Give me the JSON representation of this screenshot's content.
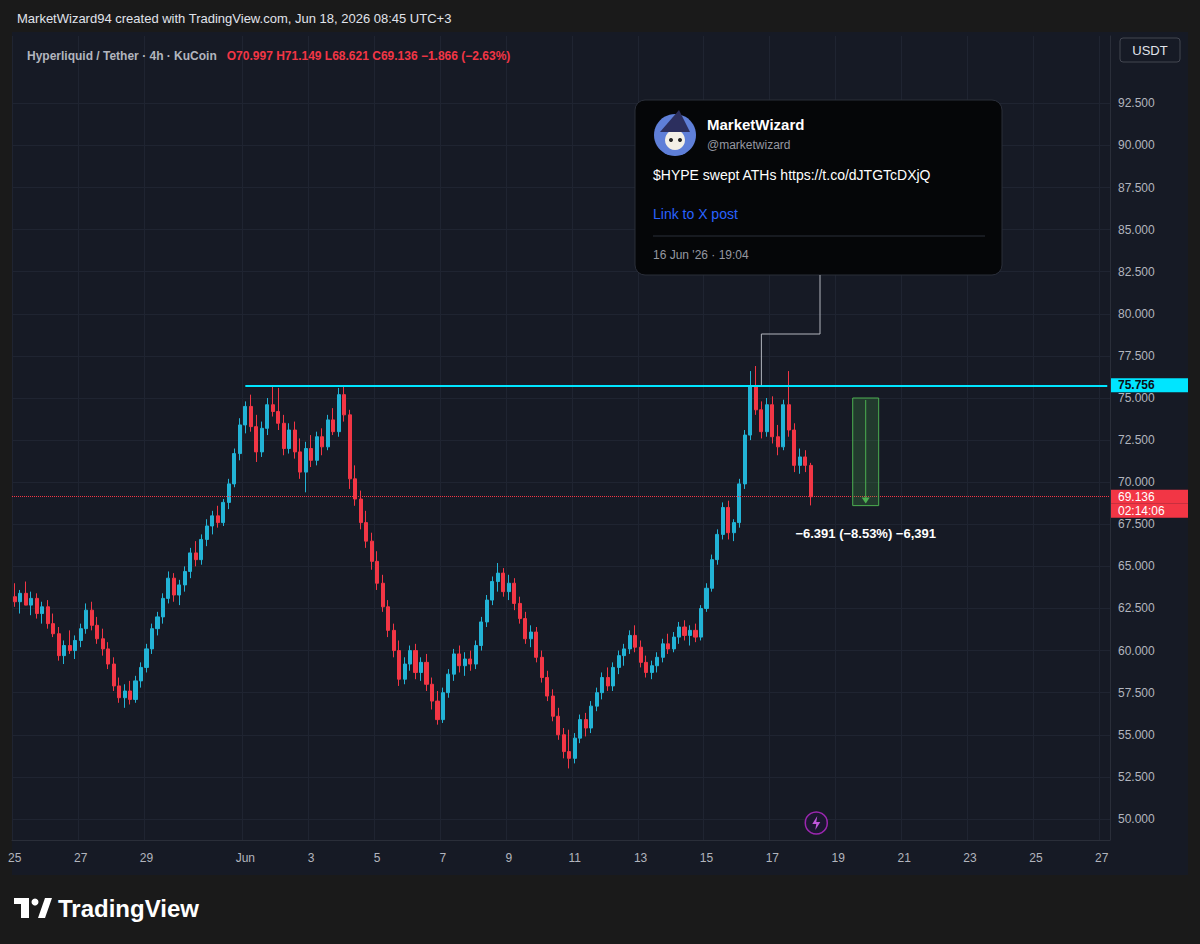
{
  "chart_data": {
    "type": "candlestick",
    "header": "MarketWizard94 created with TradingView.com, Jun 18, 2026 08:45 UTC+3",
    "title": "Hyperliquid / Tether · 4h · KuCoin",
    "subtitle": "O70.997 H71.149 L68.621 C69.136 −1.866 (−2.63%)",
    "currency": "USDT",
    "watermark": "TradingView",
    "grid": true,
    "categories": [
      "25",
      null,
      null,
      null,
      null,
      null,
      null,
      null,
      null,
      null,
      null,
      null,
      "27",
      null,
      null,
      null,
      null,
      null,
      null,
      null,
      null,
      null,
      null,
      null,
      "29",
      null,
      null,
      null,
      null,
      null,
      null,
      null,
      null,
      null,
      null,
      null,
      null,
      null,
      null,
      null,
      null,
      null,
      "Jun",
      null,
      null,
      null,
      null,
      null,
      null,
      null,
      null,
      null,
      null,
      null,
      "3",
      null,
      null,
      null,
      null,
      null,
      null,
      null,
      null,
      null,
      null,
      null,
      "5",
      null,
      null,
      null,
      null,
      null,
      null,
      null,
      null,
      null,
      null,
      null,
      "7",
      null,
      null,
      null,
      null,
      null,
      null,
      null,
      null,
      null,
      null,
      null,
      "9",
      null,
      null,
      null,
      null,
      null,
      null,
      null,
      null,
      null,
      null,
      null,
      "11",
      null,
      null,
      null,
      null,
      null,
      null,
      null,
      null,
      null,
      null,
      null,
      "13",
      null,
      null,
      null,
      null,
      null,
      null,
      null,
      null,
      null,
      null,
      null,
      "15",
      null,
      null,
      null,
      null,
      null,
      null,
      null,
      null,
      null,
      null,
      null,
      "17",
      null,
      null,
      null,
      null,
      null,
      null,
      null,
      null,
      null,
      null,
      null,
      "19",
      null,
      null,
      null,
      null,
      null,
      null,
      null,
      null,
      null,
      null,
      null,
      "21",
      null,
      null,
      null,
      null,
      null,
      null,
      null,
      null,
      null,
      null,
      null,
      "23",
      null,
      null,
      null,
      null,
      null,
      null,
      null,
      null,
      null,
      null,
      null,
      "25",
      null,
      null,
      null,
      null,
      null,
      null,
      null,
      null,
      null,
      null,
      null,
      "27",
      null
    ],
    "ohlc": [
      [
        63.2,
        64.0,
        62.6,
        62.9
      ],
      [
        62.9,
        63.6,
        62.2,
        63.4
      ],
      [
        63.4,
        64.1,
        62.8,
        62.7
      ],
      [
        62.7,
        63.5,
        62.1,
        63.1
      ],
      [
        63.1,
        63.4,
        61.9,
        62.2
      ],
      [
        62.2,
        62.9,
        61.6,
        62.6
      ],
      [
        62.6,
        63.0,
        61.3,
        61.6
      ],
      [
        61.6,
        62.2,
        60.8,
        61.0
      ],
      [
        61.0,
        61.4,
        59.4,
        59.7
      ],
      [
        59.7,
        60.6,
        59.2,
        60.3
      ],
      [
        60.3,
        61.2,
        59.8,
        60.0
      ],
      [
        60.0,
        60.9,
        59.5,
        60.6
      ],
      [
        60.6,
        61.6,
        60.2,
        61.3
      ],
      [
        61.3,
        62.8,
        61.0,
        62.4
      ],
      [
        62.4,
        62.9,
        61.2,
        61.5
      ],
      [
        61.5,
        62.0,
        60.4,
        60.7
      ],
      [
        60.7,
        61.3,
        59.7,
        60.1
      ],
      [
        60.1,
        60.5,
        58.9,
        59.2
      ],
      [
        59.2,
        59.6,
        57.6,
        57.9
      ],
      [
        57.9,
        58.4,
        56.9,
        57.2
      ],
      [
        57.2,
        58.0,
        56.6,
        57.6
      ],
      [
        57.6,
        58.2,
        56.8,
        57.1
      ],
      [
        57.1,
        58.5,
        56.9,
        58.2
      ],
      [
        58.2,
        59.3,
        57.8,
        59.0
      ],
      [
        59.0,
        60.4,
        58.7,
        60.1
      ],
      [
        60.1,
        61.6,
        59.8,
        61.3
      ],
      [
        61.3,
        62.3,
        60.9,
        62.0
      ],
      [
        62.0,
        63.4,
        61.6,
        63.1
      ],
      [
        63.1,
        64.7,
        62.8,
        64.3
      ],
      [
        64.3,
        64.6,
        62.9,
        63.3
      ],
      [
        63.3,
        64.2,
        62.7,
        63.9
      ],
      [
        63.9,
        65.0,
        63.5,
        64.7
      ],
      [
        64.7,
        66.1,
        64.3,
        65.8
      ],
      [
        65.8,
        66.5,
        65.0,
        65.4
      ],
      [
        65.4,
        66.9,
        65.1,
        66.6
      ],
      [
        66.6,
        67.8,
        66.2,
        67.4
      ],
      [
        67.4,
        68.3,
        66.9,
        68.0
      ],
      [
        68.0,
        68.6,
        67.3,
        67.6
      ],
      [
        67.6,
        69.0,
        67.4,
        68.8
      ],
      [
        68.8,
        70.2,
        68.4,
        69.9
      ],
      [
        69.9,
        72.0,
        69.7,
        71.7
      ],
      [
        71.7,
        73.8,
        71.3,
        73.4
      ],
      [
        73.4,
        74.8,
        72.9,
        74.5
      ],
      [
        74.5,
        75.2,
        73.0,
        73.3
      ],
      [
        73.3,
        74.0,
        71.2,
        71.8
      ],
      [
        71.8,
        73.6,
        71.5,
        73.2
      ],
      [
        73.2,
        75.0,
        72.8,
        74.6
      ],
      [
        74.6,
        75.7,
        73.9,
        74.2
      ],
      [
        74.2,
        75.6,
        73.1,
        73.5
      ],
      [
        73.5,
        74.0,
        71.6,
        72.0
      ],
      [
        72.0,
        73.5,
        71.7,
        73.1
      ],
      [
        73.1,
        73.6,
        71.4,
        71.8
      ],
      [
        71.8,
        72.6,
        70.2,
        70.6
      ],
      [
        70.6,
        72.4,
        69.4,
        72.0
      ],
      [
        72.0,
        72.8,
        70.9,
        71.3
      ],
      [
        71.3,
        73.0,
        71.0,
        72.7
      ],
      [
        72.7,
        73.2,
        71.6,
        72.1
      ],
      [
        72.1,
        74.0,
        71.9,
        73.7
      ],
      [
        73.7,
        74.4,
        72.8,
        73.0
      ],
      [
        73.0,
        75.6,
        72.7,
        75.2
      ],
      [
        75.2,
        75.7,
        73.6,
        74.0
      ],
      [
        74.0,
        74.3,
        69.6,
        70.2
      ],
      [
        70.2,
        71.0,
        68.6,
        69.0
      ],
      [
        69.0,
        69.5,
        67.2,
        67.6
      ],
      [
        67.6,
        68.3,
        66.1,
        66.5
      ],
      [
        66.5,
        67.0,
        64.8,
        65.3
      ],
      [
        65.3,
        65.9,
        63.6,
        64.0
      ],
      [
        64.0,
        64.5,
        62.3,
        62.6
      ],
      [
        62.6,
        63.0,
        60.8,
        61.2
      ],
      [
        61.2,
        61.6,
        59.6,
        60.0
      ],
      [
        60.0,
        60.6,
        57.9,
        58.3
      ],
      [
        58.3,
        59.6,
        58.0,
        59.2
      ],
      [
        59.2,
        60.3,
        58.8,
        60.0
      ],
      [
        60.0,
        60.4,
        58.3,
        58.7
      ],
      [
        58.7,
        59.6,
        58.2,
        59.3
      ],
      [
        59.3,
        59.8,
        57.6,
        58.0
      ],
      [
        58.0,
        58.4,
        56.5,
        57.0
      ],
      [
        57.0,
        57.6,
        55.6,
        55.9
      ],
      [
        55.9,
        57.8,
        55.7,
        57.5
      ],
      [
        57.5,
        58.9,
        57.2,
        58.6
      ],
      [
        58.6,
        60.1,
        58.2,
        59.8
      ],
      [
        59.8,
        60.3,
        58.7,
        59.1
      ],
      [
        59.1,
        59.9,
        58.5,
        59.5
      ],
      [
        59.5,
        60.0,
        58.8,
        59.2
      ],
      [
        59.2,
        60.6,
        58.9,
        60.3
      ],
      [
        60.3,
        62.0,
        60.0,
        61.7
      ],
      [
        61.7,
        63.3,
        61.4,
        63.0
      ],
      [
        63.0,
        64.4,
        62.7,
        64.1
      ],
      [
        64.1,
        65.2,
        63.5,
        64.6
      ],
      [
        64.6,
        64.9,
        63.2,
        63.5
      ],
      [
        63.5,
        64.5,
        63.0,
        64.0
      ],
      [
        64.0,
        64.3,
        62.4,
        62.8
      ],
      [
        62.8,
        63.2,
        61.6,
        61.9
      ],
      [
        61.9,
        62.3,
        60.4,
        60.7
      ],
      [
        60.7,
        61.5,
        60.2,
        61.1
      ],
      [
        61.1,
        61.4,
        59.3,
        59.6
      ],
      [
        59.6,
        60.0,
        58.1,
        58.4
      ],
      [
        58.4,
        58.8,
        57.0,
        57.3
      ],
      [
        57.3,
        57.7,
        55.8,
        56.1
      ],
      [
        56.1,
        56.6,
        54.7,
        55.0
      ],
      [
        55.0,
        55.4,
        53.6,
        54.0
      ],
      [
        54.0,
        55.3,
        53.0,
        53.6
      ],
      [
        53.6,
        55.1,
        53.3,
        54.8
      ],
      [
        54.8,
        56.2,
        54.5,
        55.9
      ],
      [
        55.9,
        56.3,
        54.9,
        55.4
      ],
      [
        55.4,
        57.0,
        55.1,
        56.7
      ],
      [
        56.7,
        57.8,
        56.4,
        57.5
      ],
      [
        57.5,
        58.7,
        57.1,
        58.4
      ],
      [
        58.4,
        59.0,
        57.6,
        57.9
      ],
      [
        57.9,
        59.3,
        57.6,
        59.0
      ],
      [
        59.0,
        60.0,
        58.6,
        59.7
      ],
      [
        59.7,
        60.4,
        59.1,
        60.1
      ],
      [
        60.1,
        61.2,
        59.8,
        60.9
      ],
      [
        60.9,
        61.5,
        59.9,
        60.2
      ],
      [
        60.2,
        60.6,
        59.0,
        59.3
      ],
      [
        59.3,
        59.7,
        58.4,
        58.7
      ],
      [
        58.7,
        59.4,
        58.3,
        59.1
      ],
      [
        59.1,
        59.9,
        58.7,
        59.6
      ],
      [
        59.6,
        60.7,
        59.3,
        60.4
      ],
      [
        60.4,
        61.0,
        59.8,
        60.1
      ],
      [
        60.1,
        61.1,
        59.9,
        60.8
      ],
      [
        60.8,
        61.7,
        60.4,
        61.4
      ],
      [
        61.4,
        61.8,
        60.6,
        60.9
      ],
      [
        60.9,
        61.5,
        60.3,
        61.2
      ],
      [
        61.2,
        61.6,
        60.5,
        60.8
      ],
      [
        60.8,
        62.7,
        60.6,
        62.5
      ],
      [
        62.5,
        64.0,
        62.3,
        63.7
      ],
      [
        63.7,
        65.7,
        63.5,
        65.4
      ],
      [
        65.4,
        67.2,
        65.1,
        66.9
      ],
      [
        66.9,
        68.8,
        66.6,
        68.5
      ],
      [
        68.5,
        68.9,
        66.6,
        67.0
      ],
      [
        67.0,
        67.8,
        66.5,
        67.6
      ],
      [
        67.6,
        70.2,
        67.3,
        69.9
      ],
      [
        69.9,
        73.1,
        69.6,
        72.8
      ],
      [
        72.8,
        76.6,
        72.5,
        75.7
      ],
      [
        75.7,
        76.9,
        74.0,
        74.3
      ],
      [
        74.3,
        74.8,
        72.6,
        73.0
      ],
      [
        73.0,
        75.0,
        72.7,
        74.6
      ],
      [
        74.6,
        75.1,
        72.3,
        72.7
      ],
      [
        72.7,
        73.4,
        71.6,
        72.1
      ],
      [
        72.1,
        74.9,
        71.9,
        74.6
      ],
      [
        74.6,
        76.6,
        72.7,
        73.1
      ],
      [
        73.1,
        73.5,
        70.6,
        71.0
      ],
      [
        71.0,
        72.0,
        70.5,
        71.5
      ],
      [
        71.5,
        71.9,
        70.6,
        71.0
      ],
      [
        70.997,
        71.149,
        68.621,
        69.136
      ],
      null,
      null,
      null,
      null,
      null,
      null,
      null,
      null,
      null,
      null,
      null,
      null,
      null,
      null,
      null,
      null,
      null,
      null,
      null,
      null,
      null,
      null,
      null,
      null,
      null,
      null,
      null,
      null,
      null,
      null,
      null,
      null,
      null,
      null,
      null,
      null,
      null,
      null,
      null,
      null,
      null,
      null,
      null,
      null,
      null,
      null,
      null,
      null,
      null,
      null,
      null,
      null,
      null,
      null
    ],
    "ylim": [
      48.75,
      96.5
    ],
    "yticks": [
      {
        "value": 50,
        "label": "50.000"
      },
      {
        "value": 52.5,
        "label": "52.500"
      },
      {
        "value": 55,
        "label": "55.000"
      },
      {
        "value": 57.5,
        "label": "57.500"
      },
      {
        "value": 60,
        "label": "60.000"
      },
      {
        "value": 62.5,
        "label": "62.500"
      },
      {
        "value": 65,
        "label": "65.000"
      },
      {
        "value": 67.5,
        "label": "67.500"
      },
      {
        "value": 70,
        "label": "70.000"
      },
      {
        "value": 72.5,
        "label": "72.500"
      },
      {
        "value": 75,
        "label": "75.000"
      },
      {
        "value": 77.5,
        "label": "77.500"
      },
      {
        "value": 80,
        "label": "80.000"
      },
      {
        "value": 82.5,
        "label": "82.500"
      },
      {
        "value": 85,
        "label": "85.000"
      },
      {
        "value": 87.5,
        "label": "87.500"
      },
      {
        "value": 90,
        "label": "90.000"
      },
      {
        "value": 92.5,
        "label": "92.500"
      }
    ],
    "level": {
      "value": 75.756
    },
    "last_price": {
      "value": 69.136,
      "countdown": "02:14:06"
    },
    "measure": {
      "from": 75.0,
      "to": 68.609,
      "label": "−6.391 (−8.53%) −6,391"
    },
    "tweet": {
      "name": "MarketWizard",
      "handle": "@marketwizard",
      "text": "$HYPE swept ATHs https://t.co/dJTGTcDXjQ",
      "link": "Link to X post",
      "date": "16 Jun '26 · 19:04"
    }
  }
}
